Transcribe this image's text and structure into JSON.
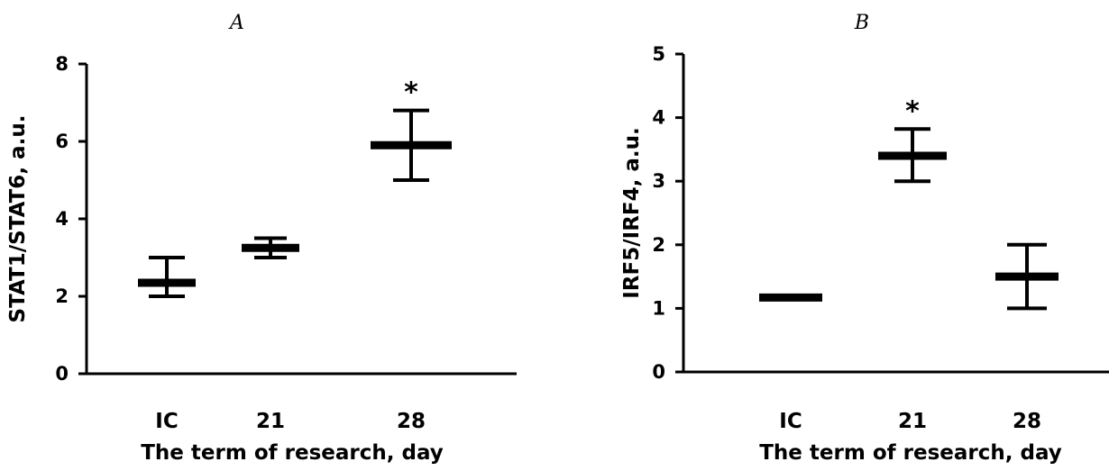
{
  "chart_data": [
    {
      "type": "box",
      "panel_label": "A",
      "categories": [
        "IC",
        "21",
        "28"
      ],
      "ylabel": "STAT1/STAT6, a.u.",
      "xlabel": "The term of research, day",
      "ylim": [
        0,
        8
      ],
      "yticks": [
        0,
        2,
        4,
        6,
        8
      ],
      "groups": [
        {
          "category": "IC",
          "mean": 2.35,
          "lower": 2.0,
          "upper": 3.0,
          "annotation": ""
        },
        {
          "category": "21",
          "mean": 3.25,
          "lower": 3.0,
          "upper": 3.5,
          "annotation": ""
        },
        {
          "category": "28",
          "mean": 5.9,
          "lower": 5.0,
          "upper": 6.8,
          "annotation": "*"
        }
      ]
    },
    {
      "type": "box",
      "panel_label": "B",
      "categories": [
        "IC",
        "21",
        "28"
      ],
      "ylabel": "IRF5/IRF4, a.u.",
      "xlabel": "The term of research, day",
      "ylim": [
        0,
        5
      ],
      "yticks": [
        0,
        1,
        2,
        3,
        4,
        5
      ],
      "groups": [
        {
          "category": "IC",
          "mean": 1.17,
          "lower": 1.17,
          "upper": 1.17,
          "annotation": ""
        },
        {
          "category": "21",
          "mean": 3.4,
          "lower": 3.0,
          "upper": 3.82,
          "annotation": "*"
        },
        {
          "category": "28",
          "mean": 1.5,
          "lower": 1.0,
          "upper": 2.0,
          "annotation": ""
        }
      ]
    }
  ]
}
